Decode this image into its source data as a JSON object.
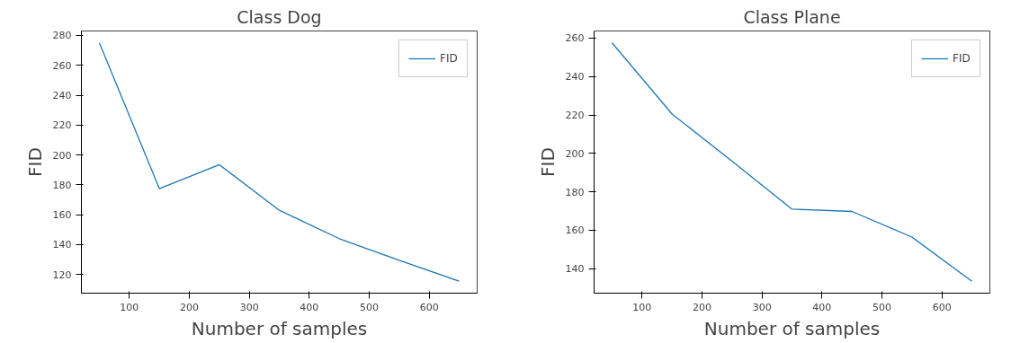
{
  "chart_data": [
    {
      "type": "line",
      "title": "Class Dog",
      "xlabel": "Number of samples",
      "ylabel": "FID",
      "x": [
        50,
        150,
        250,
        350,
        450,
        550,
        650
      ],
      "series": [
        {
          "name": "FID",
          "color": "#1f77b4",
          "values": [
            275,
            177.5,
            193.5,
            163,
            144,
            129.5,
            115.5
          ]
        }
      ],
      "xlim": [
        20,
        680
      ],
      "ylim": [
        107.5,
        283
      ],
      "xticks": [
        100,
        200,
        300,
        400,
        500,
        600
      ],
      "yticks": [
        120,
        140,
        160,
        180,
        200,
        220,
        240,
        260,
        280
      ],
      "legend": "top right",
      "grid": false
    },
    {
      "type": "line",
      "title": "Class Plane",
      "xlabel": "Number of samples",
      "ylabel": "FID",
      "x": [
        50,
        150,
        250,
        350,
        450,
        550,
        650
      ],
      "series": [
        {
          "name": "FID",
          "color": "#1f77b4",
          "values": [
            257.5,
            220.5,
            196,
            171,
            169.8,
            156.5,
            133.5
          ]
        }
      ],
      "xlim": [
        20,
        680
      ],
      "ylim": [
        127.3,
        263.7
      ],
      "xticks": [
        100,
        200,
        300,
        400,
        500,
        600
      ],
      "yticks": [
        140,
        160,
        180,
        200,
        220,
        240,
        260
      ],
      "legend": "top right",
      "grid": false
    }
  ]
}
